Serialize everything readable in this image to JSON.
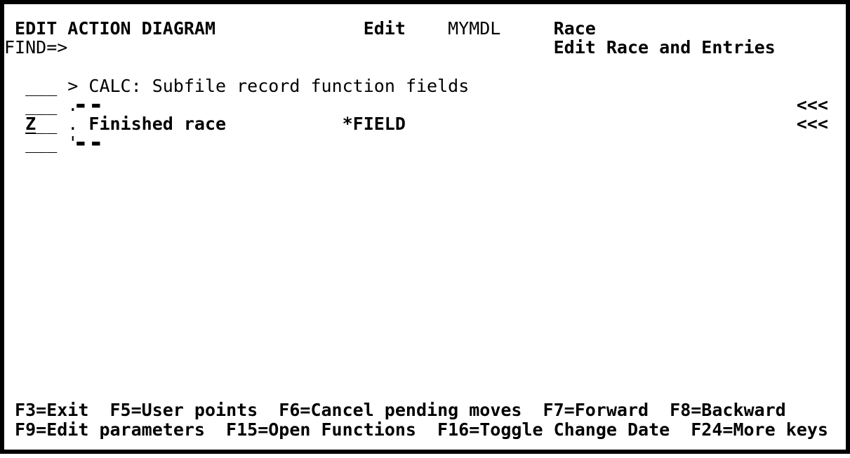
{
  "colors": {
    "background": "#ffffff",
    "text": "#000000",
    "frame": "#000000"
  },
  "grid": {
    "columns": 80,
    "rows": 24
  },
  "header": {
    "title": "EDIT ACTION DIAGRAM",
    "mode": "Edit",
    "model": "MYMDL",
    "object": "Race",
    "function_name": "Edit Race and Entries",
    "find_prompt": "FIND=>",
    "find_value": ""
  },
  "diagram": {
    "section_label": "> CALC: Subfile record function fields",
    "condition_label": "Finished race",
    "condition_context": "*FIELD",
    "line_command_value": "Z",
    "change_marker": "<<<"
  },
  "function_keys": [
    "F3=Exit",
    "F5=User points",
    "F6=Cancel pending moves",
    "F7=Forward",
    "F8=Backward",
    "F9=Edit parameters",
    "F15=Open Functions",
    "F16=Toggle Change Date",
    "F24=More keys"
  ],
  "screen_rows": [
    {
      "row": 1,
      "name": "header-row",
      "segments": [
        {
          "col": 1,
          "text": "EDIT ACTION DIAGRAM",
          "bold": true,
          "name": "screen-title",
          "interactable": false
        },
        {
          "col": 34,
          "text": "Edit",
          "bold": true,
          "name": "mode-indicator",
          "interactable": false
        },
        {
          "col": 42,
          "text": "MYMDL",
          "bold": false,
          "name": "model-name",
          "interactable": false
        },
        {
          "col": 52,
          "text": "Race",
          "bold": true,
          "name": "object-name",
          "interactable": false
        }
      ]
    },
    {
      "row": 2,
      "name": "find-row",
      "segments": [
        {
          "col": 0,
          "text": "FIND=>",
          "bold": false,
          "name": "find-prompt",
          "interactable": false
        },
        {
          "col": 7,
          "text": "",
          "width": 20,
          "bold": false,
          "name": "find-input",
          "interactable": true,
          "field": true
        },
        {
          "col": 52,
          "text": "Edit Race and Entries",
          "bold": true,
          "name": "function-name",
          "interactable": false
        }
      ]
    },
    {
      "row": 4,
      "name": "diagram-row-calc",
      "segments": [
        {
          "col": 2,
          "text": "___",
          "bold": false,
          "name": "line-command-field",
          "interactable": true,
          "field": true
        },
        {
          "col": 6,
          "text": "> CALC: Subfile record function fields",
          "bold": false,
          "name": "calc-section-label",
          "interactable": false
        }
      ]
    },
    {
      "row": 5,
      "name": "diagram-row-case-top",
      "segments": [
        {
          "col": 2,
          "text": "___",
          "bold": false,
          "name": "line-command-field",
          "interactable": true,
          "field": true
        },
        {
          "col": 6,
          "text": ".",
          "bold": false,
          "name": "case-border-top-corner",
          "interactable": false
        },
        {
          "col": 7,
          "text": "--",
          "bold": true,
          "dash": true,
          "name": "case-border-top",
          "interactable": false
        },
        {
          "col": 75,
          "text": "<<<",
          "bold": true,
          "name": "change-marker",
          "interactable": false
        }
      ]
    },
    {
      "row": 6,
      "name": "diagram-row-condition",
      "segments": [
        {
          "col": 2,
          "text": "Z",
          "bold": true,
          "underline": true,
          "name": "line-command-value",
          "interactable": true
        },
        {
          "col": 3,
          "text": "__",
          "bold": false,
          "name": "line-command-field",
          "interactable": true,
          "field": true
        },
        {
          "col": 6,
          "text": ".",
          "bold": false,
          "name": "case-border-left",
          "interactable": false
        },
        {
          "col": 8,
          "text": "Finished race",
          "bold": true,
          "name": "condition-label",
          "interactable": false
        },
        {
          "col": 32,
          "text": "*FIELD",
          "bold": true,
          "name": "condition-context",
          "interactable": false
        },
        {
          "col": 75,
          "text": "<<<",
          "bold": true,
          "name": "change-marker",
          "interactable": false
        }
      ]
    },
    {
      "row": 7,
      "name": "diagram-row-case-bottom",
      "segments": [
        {
          "col": 2,
          "text": "___",
          "bold": false,
          "name": "line-command-field",
          "interactable": true,
          "field": true
        },
        {
          "col": 6,
          "text": "'",
          "bold": false,
          "name": "case-border-bottom-corner",
          "interactable": false
        },
        {
          "col": 7,
          "text": "--",
          "bold": true,
          "dash": true,
          "name": "case-border-bottom",
          "interactable": false
        }
      ]
    },
    {
      "row": 21,
      "name": "fkey-row-1",
      "segments": [
        {
          "col": 1,
          "text": "F3=Exit",
          "bold": true,
          "name": "fkey-f3",
          "interactable": false
        },
        {
          "col": 10,
          "text": "F5=User points",
          "bold": true,
          "name": "fkey-f5",
          "interactable": false
        },
        {
          "col": 26,
          "text": "F6=Cancel pending moves",
          "bold": true,
          "name": "fkey-f6",
          "interactable": false
        },
        {
          "col": 51,
          "text": "F7=Forward",
          "bold": true,
          "name": "fkey-f7",
          "interactable": false
        },
        {
          "col": 63,
          "text": "F8=Backward",
          "bold": true,
          "name": "fkey-f8",
          "interactable": false
        }
      ]
    },
    {
      "row": 22,
      "name": "fkey-row-2",
      "segments": [
        {
          "col": 1,
          "text": "F9=Edit parameters",
          "bold": true,
          "name": "fkey-f9",
          "interactable": false
        },
        {
          "col": 21,
          "text": "F15=Open Functions",
          "bold": true,
          "name": "fkey-f15",
          "interactable": false
        },
        {
          "col": 41,
          "text": "F16=Toggle Change Date",
          "bold": true,
          "name": "fkey-f16",
          "interactable": false
        },
        {
          "col": 65,
          "text": "F24=More keys",
          "bold": true,
          "name": "fkey-f24",
          "interactable": false
        }
      ]
    }
  ]
}
